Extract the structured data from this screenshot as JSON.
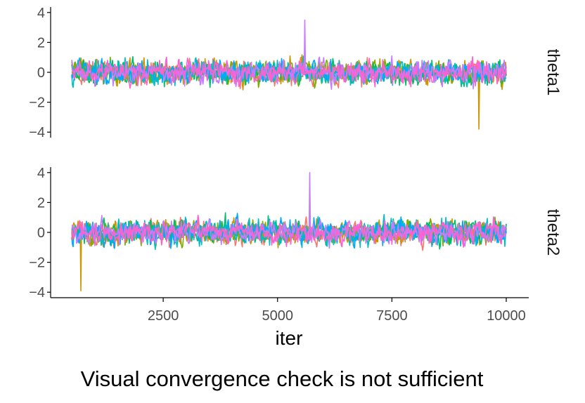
{
  "caption": "Visual convergence check is not sufficient",
  "chart_data": {
    "type": "line",
    "xlabel": "iter",
    "ylabel": "",
    "xlim": [
      500,
      10000
    ],
    "x_ticks": [
      2500,
      5000,
      7500,
      10000
    ],
    "x_tick_labels": [
      "2500",
      "5000",
      "7500",
      "10000"
    ],
    "ylim": [
      -4.3,
      4.4
    ],
    "y_ticks": [
      -4,
      -2,
      0,
      2,
      4
    ],
    "y_tick_labels": [
      "−4",
      "−2",
      "0",
      "2",
      "4"
    ],
    "grid": false,
    "legend": "none",
    "facets": [
      {
        "label": "theta1",
        "extremes": {
          "max": 3.5,
          "max_x": 5600,
          "min": -3.8,
          "min_x": 9400
        }
      },
      {
        "label": "theta2",
        "extremes": {
          "max": 4.0,
          "max_x": 5700,
          "min": -3.9,
          "min_x": 700
        }
      }
    ],
    "series_colors": [
      "#F8766D",
      "#CD9600",
      "#7CAE00",
      "#00BE67",
      "#00BFC4",
      "#00A9FF",
      "#C77CFF",
      "#FF61CC"
    ],
    "trace_summary": {
      "mean": 0,
      "typical_range": [
        -2,
        2
      ]
    }
  }
}
